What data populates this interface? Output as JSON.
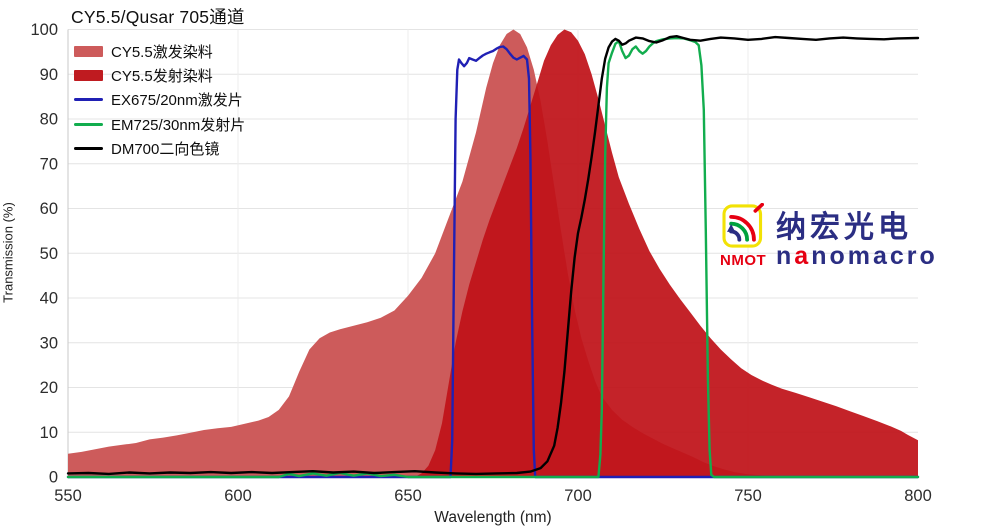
{
  "chart_data": {
    "type": "mixed-area-line-spectra",
    "title": "CY5.5/Qusar 705通道",
    "xlabel": "Wavelength (nm)",
    "ylabel": "Transmission (%)",
    "x_range": [
      550,
      800
    ],
    "y_range": [
      0,
      100
    ],
    "x_ticks": [
      550,
      600,
      650,
      700,
      750,
      800
    ],
    "y_ticks": [
      0,
      10,
      20,
      30,
      40,
      50,
      60,
      70,
      80,
      90,
      100
    ],
    "grid": "on",
    "legend_position": "top-left-inside",
    "series": [
      {
        "id": "excitation-dye",
        "name": "CY5.5激发染料",
        "kind": "area",
        "color": "#cd5b5b",
        "opacity": 1,
        "points": [
          [
            550,
            5.2
          ],
          [
            554,
            5.6
          ],
          [
            558,
            6.2
          ],
          [
            562,
            6.8
          ],
          [
            566,
            7.2
          ],
          [
            570,
            7.6
          ],
          [
            574,
            8.4
          ],
          [
            578,
            8.8
          ],
          [
            582,
            9.3
          ],
          [
            586,
            9.9
          ],
          [
            590,
            10.5
          ],
          [
            594,
            10.9
          ],
          [
            598,
            11.2
          ],
          [
            602,
            11.9
          ],
          [
            606,
            12.6
          ],
          [
            609,
            13.4
          ],
          [
            612,
            15
          ],
          [
            615,
            18
          ],
          [
            618,
            23.5
          ],
          [
            621,
            28.5
          ],
          [
            624,
            31
          ],
          [
            627,
            32.3
          ],
          [
            630,
            33
          ],
          [
            634,
            33.8
          ],
          [
            638,
            34.6
          ],
          [
            642,
            35.6
          ],
          [
            646,
            37.2
          ],
          [
            650,
            40.5
          ],
          [
            654,
            44.5
          ],
          [
            658,
            50
          ],
          [
            662,
            58
          ],
          [
            666,
            66
          ],
          [
            670,
            77
          ],
          [
            673,
            87
          ],
          [
            675,
            92.5
          ],
          [
            677,
            96.5
          ],
          [
            679,
            99
          ],
          [
            681,
            100
          ],
          [
            683,
            99
          ],
          [
            685,
            96
          ],
          [
            687,
            91
          ],
          [
            689,
            84
          ],
          [
            691,
            75
          ],
          [
            693,
            65
          ],
          [
            695,
            55
          ],
          [
            697,
            45.5
          ],
          [
            699,
            37.5
          ],
          [
            701,
            31
          ],
          [
            703,
            26
          ],
          [
            705,
            21.5
          ],
          [
            707,
            18
          ],
          [
            710,
            15
          ],
          [
            713,
            12.8
          ],
          [
            716,
            11.2
          ],
          [
            719,
            9.8
          ],
          [
            722,
            8.6
          ],
          [
            725,
            7.4
          ],
          [
            728,
            6.4
          ],
          [
            731,
            5.4
          ],
          [
            734,
            4.4
          ],
          [
            737,
            3.3
          ],
          [
            740,
            2.4
          ],
          [
            743,
            1.7
          ],
          [
            746,
            1.1
          ],
          [
            750,
            0.6
          ],
          [
            756,
            0.3
          ],
          [
            765,
            0.15
          ],
          [
            800,
            0.1
          ]
        ]
      },
      {
        "id": "emission-dye",
        "name": "CY5.5发射染料",
        "kind": "area",
        "color": "#bf1219",
        "opacity": 0.93,
        "points": [
          [
            652,
            0
          ],
          [
            654,
            0.8
          ],
          [
            656,
            2.5
          ],
          [
            658,
            6
          ],
          [
            660,
            12
          ],
          [
            662,
            21
          ],
          [
            664,
            30
          ],
          [
            666,
            37
          ],
          [
            668,
            43
          ],
          [
            670,
            48
          ],
          [
            672,
            53
          ],
          [
            674,
            57.5
          ],
          [
            676,
            61.5
          ],
          [
            678,
            65.5
          ],
          [
            680,
            69.5
          ],
          [
            682,
            73.5
          ],
          [
            684,
            78
          ],
          [
            686,
            83
          ],
          [
            688,
            88
          ],
          [
            690,
            93
          ],
          [
            692,
            96.5
          ],
          [
            694,
            98.8
          ],
          [
            696,
            100
          ],
          [
            698,
            99.4
          ],
          [
            700,
            97.5
          ],
          [
            702,
            94.5
          ],
          [
            704,
            90
          ],
          [
            706,
            84.5
          ],
          [
            708,
            78.5
          ],
          [
            710,
            72.5
          ],
          [
            712,
            67
          ],
          [
            715,
            61
          ],
          [
            718,
            55.5
          ],
          [
            721,
            50.5
          ],
          [
            724,
            46.5
          ],
          [
            727,
            43
          ],
          [
            730,
            39.8
          ],
          [
            733,
            36.8
          ],
          [
            736,
            33.8
          ],
          [
            739,
            31
          ],
          [
            742,
            28.5
          ],
          [
            745,
            26.3
          ],
          [
            748,
            24.3
          ],
          [
            751,
            22.8
          ],
          [
            754,
            21.6
          ],
          [
            757,
            20.6
          ],
          [
            760,
            19.7
          ],
          [
            764,
            18.8
          ],
          [
            768,
            17.8
          ],
          [
            772,
            16.8
          ],
          [
            776,
            15.8
          ],
          [
            780,
            14.7
          ],
          [
            784,
            13.6
          ],
          [
            788,
            12.5
          ],
          [
            792,
            11.3
          ],
          [
            795,
            10.3
          ],
          [
            797,
            9.4
          ],
          [
            800,
            8.2
          ]
        ]
      },
      {
        "id": "ex-filter",
        "name": "EX675/20nm激发片",
        "kind": "line",
        "color": "#2020b4",
        "points": [
          [
            550,
            0
          ],
          [
            662.5,
            0
          ],
          [
            663,
            8
          ],
          [
            663.5,
            45
          ],
          [
            664,
            80
          ],
          [
            664.5,
            91
          ],
          [
            665,
            93.3
          ],
          [
            665.7,
            92.5
          ],
          [
            666.5,
            91.8
          ],
          [
            667.3,
            92.5
          ],
          [
            668,
            93.6
          ],
          [
            669,
            93.3
          ],
          [
            670,
            93
          ],
          [
            671,
            93.6
          ],
          [
            672,
            94.2
          ],
          [
            673,
            94.6
          ],
          [
            674,
            94.9
          ],
          [
            675,
            95.2
          ],
          [
            676,
            95.7
          ],
          [
            677,
            96.1
          ],
          [
            678,
            96.2
          ],
          [
            679,
            95.6
          ],
          [
            680,
            94.6
          ],
          [
            681,
            93.7
          ],
          [
            682,
            93.3
          ],
          [
            683,
            93.7
          ],
          [
            684,
            94.1
          ],
          [
            685,
            93.3
          ],
          [
            685.6,
            89
          ],
          [
            686,
            72
          ],
          [
            686.5,
            35
          ],
          [
            687,
            6
          ],
          [
            687.4,
            0
          ],
          [
            800,
            0
          ]
        ]
      },
      {
        "id": "em-filter",
        "name": "EM725/30nm发射片",
        "kind": "line",
        "color": "#12ad4e",
        "points": [
          [
            550,
            0
          ],
          [
            612,
            0
          ],
          [
            615,
            0.7
          ],
          [
            618,
            0.2
          ],
          [
            622,
            0.8
          ],
          [
            626,
            0.3
          ],
          [
            630,
            0.9
          ],
          [
            634,
            0.3
          ],
          [
            638,
            0.8
          ],
          [
            642,
            0.2
          ],
          [
            646,
            0.5
          ],
          [
            650,
            0
          ],
          [
            706,
            0
          ],
          [
            706.6,
            5
          ],
          [
            707,
            15
          ],
          [
            707.5,
            45
          ],
          [
            708,
            72
          ],
          [
            708.5,
            87
          ],
          [
            709,
            92.5
          ],
          [
            710,
            94.8
          ],
          [
            711,
            96.8
          ],
          [
            712,
            97.4
          ],
          [
            713,
            95.2
          ],
          [
            714,
            93.6
          ],
          [
            715,
            94.2
          ],
          [
            716,
            95.6
          ],
          [
            717,
            96.2
          ],
          [
            718,
            95.2
          ],
          [
            719,
            94.6
          ],
          [
            720,
            95.2
          ],
          [
            721,
            96.2
          ],
          [
            722,
            96.9
          ],
          [
            723,
            97.4
          ],
          [
            725,
            97.8
          ],
          [
            727,
            98
          ],
          [
            729,
            98.1
          ],
          [
            731,
            98
          ],
          [
            733,
            97.6
          ],
          [
            734.5,
            97.2
          ],
          [
            735.5,
            96.5
          ],
          [
            736.3,
            92
          ],
          [
            737,
            82
          ],
          [
            737.6,
            55
          ],
          [
            738.2,
            22
          ],
          [
            738.7,
            6
          ],
          [
            739.2,
            0.5
          ],
          [
            740,
            0
          ],
          [
            800,
            0
          ]
        ]
      },
      {
        "id": "dichroic",
        "name": "DM700二向色镜",
        "kind": "line",
        "color": "#000000",
        "points": [
          [
            550,
            0.8
          ],
          [
            556,
            0.9
          ],
          [
            562,
            0.7
          ],
          [
            568,
            1
          ],
          [
            574,
            0.8
          ],
          [
            580,
            1
          ],
          [
            586,
            0.9
          ],
          [
            592,
            1.1
          ],
          [
            598,
            0.9
          ],
          [
            604,
            1.1
          ],
          [
            610,
            0.9
          ],
          [
            616,
            1.1
          ],
          [
            622,
            1.3
          ],
          [
            628,
            1
          ],
          [
            634,
            1.2
          ],
          [
            640,
            0.9
          ],
          [
            646,
            1.1
          ],
          [
            652,
            1.3
          ],
          [
            658,
            1
          ],
          [
            664,
            0.8
          ],
          [
            670,
            0.7
          ],
          [
            676,
            0.8
          ],
          [
            682,
            0.9
          ],
          [
            686,
            1.2
          ],
          [
            689,
            2
          ],
          [
            691,
            3.5
          ],
          [
            693,
            7
          ],
          [
            694,
            11
          ],
          [
            695,
            16.5
          ],
          [
            696,
            23.5
          ],
          [
            697,
            32.5
          ],
          [
            698,
            41.5
          ],
          [
            699,
            49
          ],
          [
            700,
            54.5
          ],
          [
            701,
            58
          ],
          [
            702,
            62
          ],
          [
            703,
            66.5
          ],
          [
            704,
            71.5
          ],
          [
            705,
            77
          ],
          [
            706,
            83
          ],
          [
            707,
            89
          ],
          [
            708,
            93.5
          ],
          [
            709,
            96
          ],
          [
            710,
            97.3
          ],
          [
            711,
            97.9
          ],
          [
            712,
            97.5
          ],
          [
            713,
            96.6
          ],
          [
            714,
            96.9
          ],
          [
            715,
            97.5
          ],
          [
            717,
            98.2
          ],
          [
            719,
            98
          ],
          [
            721,
            97.4
          ],
          [
            723,
            97.1
          ],
          [
            725,
            97.6
          ],
          [
            727,
            98.3
          ],
          [
            729,
            98.5
          ],
          [
            731,
            98.1
          ],
          [
            733,
            97.7
          ],
          [
            736,
            97.5
          ],
          [
            739,
            97.9
          ],
          [
            742,
            98.2
          ],
          [
            746,
            98
          ],
          [
            750,
            97.7
          ],
          [
            754,
            97.9
          ],
          [
            758,
            98.3
          ],
          [
            762,
            98.1
          ],
          [
            766,
            97.9
          ],
          [
            770,
            97.7
          ],
          [
            774,
            98
          ],
          [
            778,
            98.2
          ],
          [
            782,
            98
          ],
          [
            786,
            97.9
          ],
          [
            790,
            97.8
          ],
          [
            794,
            98
          ],
          [
            800,
            98.1
          ]
        ]
      }
    ]
  },
  "logo": {
    "brand_cn": "纳宏光电",
    "abbr": "NMOT",
    "brand_en_pre": "n",
    "brand_en_accent": "a",
    "brand_en_rest": "nomacro",
    "colors": {
      "navy": "#2b2e83",
      "red": "#e60012",
      "yellow": "#f2e205",
      "green": "#00a23e"
    }
  },
  "style": {
    "grid_color": "#e4e4e4",
    "v_grid_color": "#ededed",
    "y_spine_color": "#c9c9c9",
    "x_spine_color": "#9a9a9a",
    "tick_color": "#2d2d2d"
  }
}
